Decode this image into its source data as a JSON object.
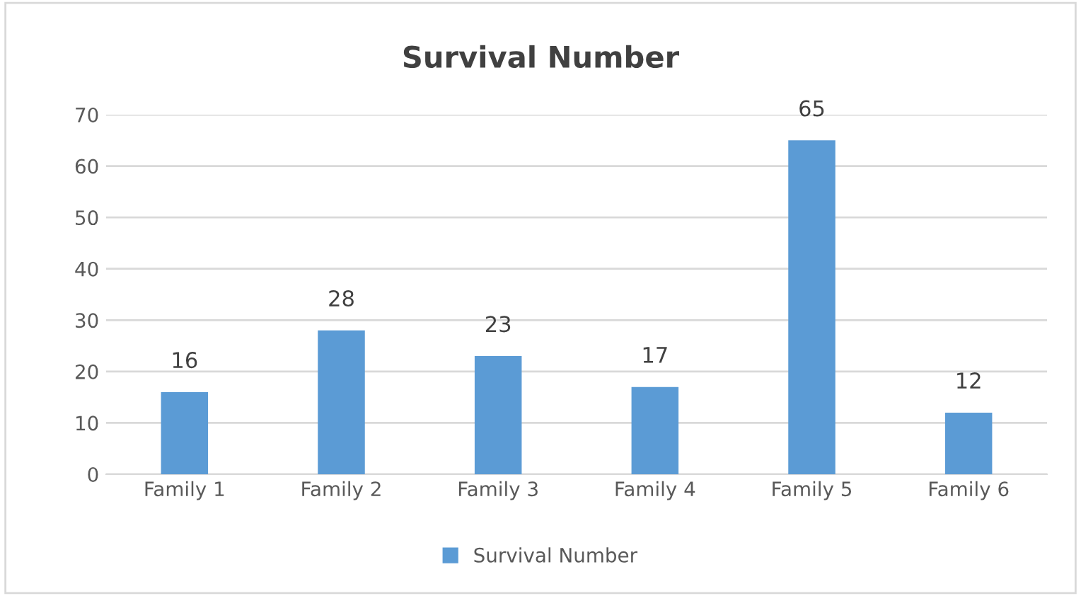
{
  "chart_data": {
    "type": "bar",
    "title": "Survival Number",
    "categories": [
      "Family 1",
      "Family 2",
      "Family 3",
      "Family 4",
      "Family 5",
      "Family 6"
    ],
    "series": [
      {
        "name": "Survival Number",
        "color": "#5b9bd5",
        "values": [
          16,
          28,
          23,
          17,
          65,
          12
        ]
      }
    ],
    "ylim": [
      0,
      70
    ],
    "yticks": [
      0,
      10,
      20,
      30,
      40,
      50,
      60,
      70
    ],
    "grid": "y",
    "legend": "bottom",
    "data_labels": true
  }
}
